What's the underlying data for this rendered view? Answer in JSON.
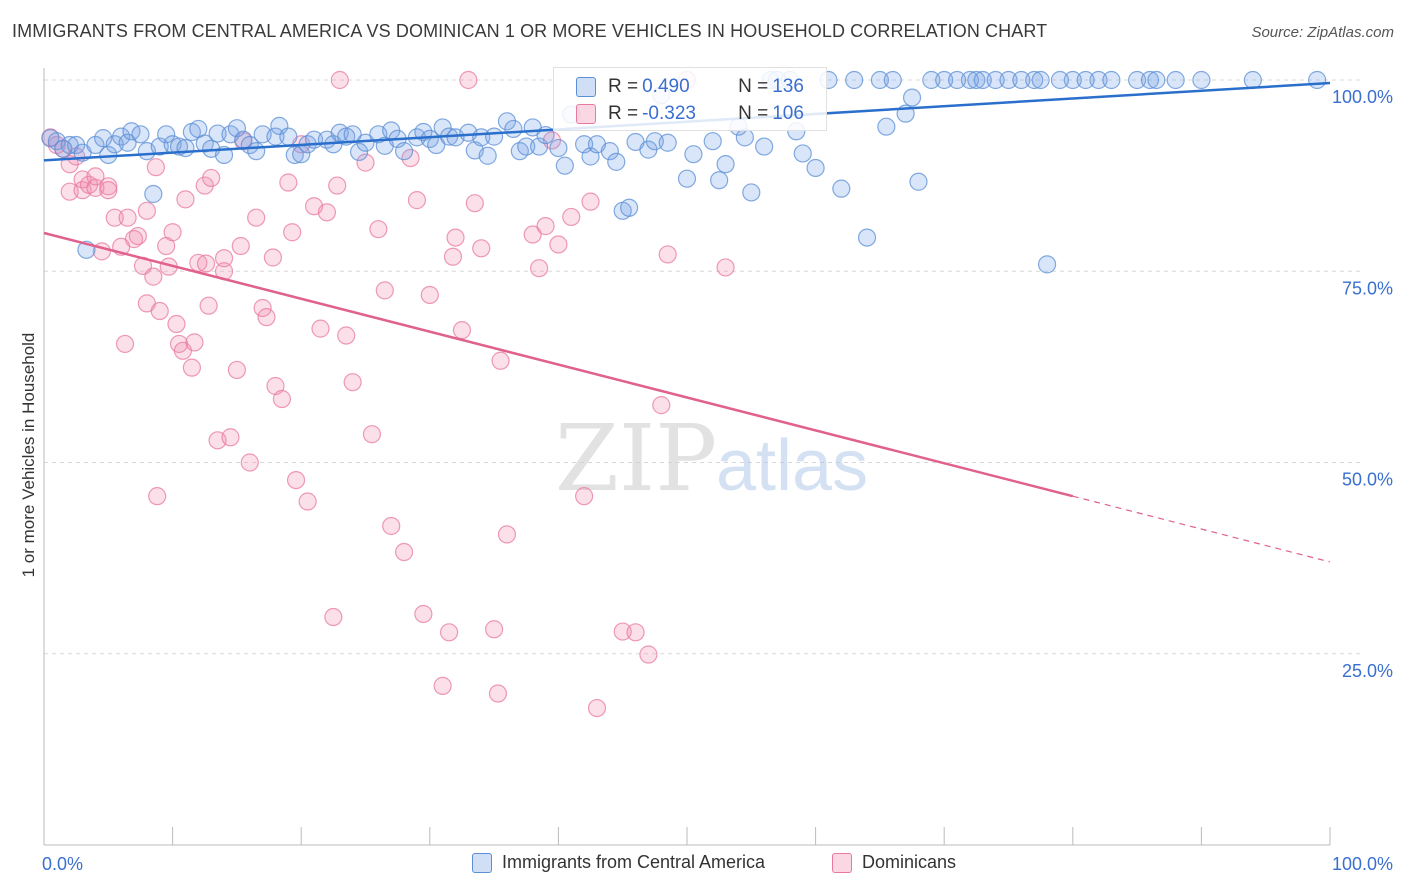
{
  "title": "IMMIGRANTS FROM CENTRAL AMERICA VS DOMINICAN 1 OR MORE VEHICLES IN HOUSEHOLD CORRELATION CHART",
  "source": "Source: ZipAtlas.com",
  "watermark": {
    "zip": "ZIP",
    "atlas": "atlas"
  },
  "stats": [
    {
      "r_label": "R =",
      "r_value": "0.490",
      "n_label": "N =",
      "n_value": "136"
    },
    {
      "r_label": "R =",
      "r_value": "-0.323",
      "n_label": "N =",
      "n_value": "106"
    }
  ],
  "legend": [
    {
      "label": "Immigrants from Central America"
    },
    {
      "label": "Dominicans"
    }
  ],
  "colors": {
    "blue": "#5b8fd6",
    "blue_fill": "rgba(120,160,230,0.28)",
    "blue_line": "#2a6fcc",
    "pink": "#e87aa0",
    "pink_fill": "rgba(240,140,175,0.28)",
    "pink_line": "#e0608e",
    "tick_label": "#3a6fd0",
    "grid": "#d8d8d8"
  },
  "chart_data": {
    "type": "scatter",
    "title": "IMMIGRANTS FROM CENTRAL AMERICA VS DOMINICAN 1 OR MORE VEHICLES IN HOUSEHOLD CORRELATION CHART",
    "xlabel": "",
    "ylabel": "1 or more Vehicles in Household",
    "xlim": [
      0,
      100
    ],
    "ylim": [
      0,
      100
    ],
    "x_tick_labels": [
      "0.0%",
      "100.0%"
    ],
    "y_ticks": [
      25,
      50,
      75,
      100
    ],
    "y_tick_labels": [
      "25.0%",
      "50.0%",
      "75.0%",
      "100.0%"
    ],
    "grid": true,
    "legend_position": "bottom",
    "series": [
      {
        "name": "Immigrants from Central America",
        "trend": {
          "x0": 0,
          "y0": 89.5,
          "x1": 100,
          "y1": 99.6
        },
        "points": [
          [
            0.5,
            92.4
          ],
          [
            1,
            92
          ],
          [
            1.5,
            91
          ],
          [
            2,
            91.5
          ],
          [
            2.5,
            91.5
          ],
          [
            3,
            90.5
          ],
          [
            3.3,
            77.8
          ],
          [
            4,
            91.5
          ],
          [
            4.6,
            92.4
          ],
          [
            5,
            90.2
          ],
          [
            5.5,
            91.6
          ],
          [
            6,
            92.6
          ],
          [
            6.5,
            91.8
          ],
          [
            6.8,
            93.3
          ],
          [
            7.5,
            92.9
          ],
          [
            8,
            90.7
          ],
          [
            8.5,
            85.1
          ],
          [
            9,
            91.3
          ],
          [
            9.5,
            92.9
          ],
          [
            10,
            91.6
          ],
          [
            10.5,
            91.3
          ],
          [
            11,
            91.1
          ],
          [
            11.5,
            93.2
          ],
          [
            12,
            93.6
          ],
          [
            12.5,
            91.7
          ],
          [
            13,
            91.0
          ],
          [
            13.5,
            93.0
          ],
          [
            14,
            90.2
          ],
          [
            14.5,
            92.9
          ],
          [
            15,
            93.7
          ],
          [
            15.5,
            92.2
          ],
          [
            16,
            91.5
          ],
          [
            16.5,
            90.7
          ],
          [
            17,
            92.9
          ],
          [
            18,
            92.6
          ],
          [
            18.3,
            94.0
          ],
          [
            19,
            92.6
          ],
          [
            19.5,
            90.2
          ],
          [
            20,
            90.3
          ],
          [
            20.5,
            91.6
          ],
          [
            21,
            92.2
          ],
          [
            22,
            92.2
          ],
          [
            22.5,
            91.6
          ],
          [
            23,
            93.1
          ],
          [
            23.5,
            92.6
          ],
          [
            24,
            92.9
          ],
          [
            24.5,
            90.6
          ],
          [
            25,
            91.8
          ],
          [
            26,
            92.9
          ],
          [
            26.5,
            91.4
          ],
          [
            27,
            93.4
          ],
          [
            27.5,
            92.3
          ],
          [
            28,
            90.7
          ],
          [
            29,
            92.5
          ],
          [
            29.5,
            93.2
          ],
          [
            30,
            92.3
          ],
          [
            30.5,
            91.5
          ],
          [
            31,
            93.8
          ],
          [
            31.5,
            92.6
          ],
          [
            32,
            92.5
          ],
          [
            33,
            93.1
          ],
          [
            33.5,
            90.8
          ],
          [
            34,
            92.5
          ],
          [
            34.5,
            90.1
          ],
          [
            35,
            92.6
          ],
          [
            36,
            94.6
          ],
          [
            36.5,
            93.6
          ],
          [
            37,
            90.7
          ],
          [
            37.5,
            91.3
          ],
          [
            38,
            93.8
          ],
          [
            38.5,
            91.3
          ],
          [
            39,
            92.8
          ],
          [
            40,
            91.1
          ],
          [
            40.5,
            88.8
          ],
          [
            41,
            95.5
          ],
          [
            42,
            91.6
          ],
          [
            42.5,
            90.0
          ],
          [
            43,
            91.6
          ],
          [
            44,
            90.7
          ],
          [
            44.5,
            89.3
          ],
          [
            45,
            82.9
          ],
          [
            45.5,
            83.3
          ],
          [
            46,
            91.9
          ],
          [
            47,
            90.9
          ],
          [
            47.5,
            92.0
          ],
          [
            48,
            98.0
          ],
          [
            48.5,
            91.8
          ],
          [
            50,
            87.1
          ],
          [
            50.5,
            90.3
          ],
          [
            52,
            92.0
          ],
          [
            52.5,
            86.9
          ],
          [
            53,
            89.0
          ],
          [
            54,
            93.9
          ],
          [
            54.5,
            92.5
          ],
          [
            55,
            85.3
          ],
          [
            56,
            91.3
          ],
          [
            56.5,
            100
          ],
          [
            57,
            100
          ],
          [
            58,
            100
          ],
          [
            58.5,
            93.3
          ],
          [
            59,
            90.4
          ],
          [
            60,
            88.5
          ],
          [
            61,
            100
          ],
          [
            62,
            85.8
          ],
          [
            63,
            100
          ],
          [
            64,
            79.4
          ],
          [
            65,
            100
          ],
          [
            65.5,
            93.9
          ],
          [
            66,
            100
          ],
          [
            67,
            95.6
          ],
          [
            67.5,
            97.7
          ],
          [
            68,
            86.7
          ],
          [
            69,
            100
          ],
          [
            70,
            100
          ],
          [
            71,
            100
          ],
          [
            72,
            100
          ],
          [
            72.5,
            100
          ],
          [
            73,
            100
          ],
          [
            74,
            100
          ],
          [
            75,
            100
          ],
          [
            76,
            100
          ],
          [
            77,
            100
          ],
          [
            77.5,
            100
          ],
          [
            78,
            75.9
          ],
          [
            80,
            100
          ],
          [
            82,
            100
          ],
          [
            83,
            100
          ],
          [
            85,
            100
          ],
          [
            86,
            100
          ],
          [
            88,
            100
          ],
          [
            90,
            100
          ],
          [
            94,
            100
          ],
          [
            99,
            100
          ],
          [
            86.5,
            100
          ],
          [
            81,
            100
          ],
          [
            79,
            100
          ]
        ]
      },
      {
        "name": "Dominicans",
        "trend": {
          "x0": 0,
          "y0": 80.0,
          "x1": 80,
          "y1": 45.6,
          "dash_to_x": 100,
          "dash_to_y": 37.0
        },
        "points": [
          [
            0.5,
            92.5
          ],
          [
            1,
            91.5
          ],
          [
            1.5,
            91
          ],
          [
            2,
            89
          ],
          [
            2,
            85.4
          ],
          [
            2.5,
            90
          ],
          [
            3,
            85.6
          ],
          [
            3,
            87
          ],
          [
            3.5,
            86.3
          ],
          [
            4,
            85.9
          ],
          [
            4,
            87.4
          ],
          [
            4.5,
            77.6
          ],
          [
            5,
            86.1
          ],
          [
            5,
            85.6
          ],
          [
            5.5,
            82
          ],
          [
            6,
            78.2
          ],
          [
            6.3,
            65.5
          ],
          [
            6.5,
            82
          ],
          [
            7,
            79.2
          ],
          [
            7.3,
            79.6
          ],
          [
            7.7,
            75.7
          ],
          [
            8,
            82.9
          ],
          [
            8,
            70.8
          ],
          [
            8.5,
            74.3
          ],
          [
            8.7,
            88.6
          ],
          [
            8.8,
            45.6
          ],
          [
            9,
            69.8
          ],
          [
            9.5,
            78.3
          ],
          [
            9.7,
            75.6
          ],
          [
            10,
            80.1
          ],
          [
            10.3,
            68.1
          ],
          [
            10.5,
            65.5
          ],
          [
            10.8,
            64.6
          ],
          [
            11,
            84.4
          ],
          [
            11.5,
            62.4
          ],
          [
            11.7,
            65.7
          ],
          [
            12,
            76.1
          ],
          [
            12.5,
            86.2
          ],
          [
            12.6,
            76
          ],
          [
            12.8,
            70.5
          ],
          [
            13,
            87.2
          ],
          [
            13.5,
            52.9
          ],
          [
            14,
            75
          ],
          [
            14,
            76.7
          ],
          [
            14.5,
            53.3
          ],
          [
            15,
            62.1
          ],
          [
            15.3,
            78.3
          ],
          [
            15.5,
            92
          ],
          [
            16,
            50.0
          ],
          [
            16.5,
            82
          ],
          [
            17,
            70.2
          ],
          [
            17.3,
            69
          ],
          [
            17.8,
            76.8
          ],
          [
            18,
            60
          ],
          [
            18.5,
            58.3
          ],
          [
            19,
            86.6
          ],
          [
            19.3,
            80.1
          ],
          [
            19.6,
            47.7
          ],
          [
            20,
            91.6
          ],
          [
            20.5,
            44.9
          ],
          [
            21,
            83.5
          ],
          [
            21.5,
            67.5
          ],
          [
            22,
            82.7
          ],
          [
            22.5,
            29.8
          ],
          [
            22.8,
            86.2
          ],
          [
            23,
            100
          ],
          [
            23.5,
            66.6
          ],
          [
            24,
            60.5
          ],
          [
            25,
            89.2
          ],
          [
            25.5,
            53.7
          ],
          [
            26,
            80.5
          ],
          [
            26.5,
            72.5
          ],
          [
            27,
            41.7
          ],
          [
            28,
            38.3
          ],
          [
            28.5,
            89.8
          ],
          [
            29,
            84.3
          ],
          [
            29.5,
            30.2
          ],
          [
            30,
            71.9
          ],
          [
            31,
            20.8
          ],
          [
            31.5,
            27.8
          ],
          [
            31.8,
            76.9
          ],
          [
            32,
            79.4
          ],
          [
            32.5,
            67.3
          ],
          [
            33,
            100
          ],
          [
            33.5,
            83.9
          ],
          [
            34,
            78.0
          ],
          [
            35,
            28.2
          ],
          [
            35.3,
            19.8
          ],
          [
            35.5,
            63.3
          ],
          [
            36,
            40.6
          ],
          [
            38,
            79.8
          ],
          [
            38.5,
            75.4
          ],
          [
            39,
            80.9
          ],
          [
            39.5,
            92.1
          ],
          [
            40,
            78.5
          ],
          [
            41,
            82.1
          ],
          [
            42,
            45.6
          ],
          [
            42.5,
            84.1
          ],
          [
            43,
            17.9
          ],
          [
            45,
            27.9
          ],
          [
            46,
            27.8
          ],
          [
            47,
            24.9
          ],
          [
            48,
            57.5
          ],
          [
            48.5,
            77.2
          ],
          [
            50,
            100
          ],
          [
            53,
            75.5
          ]
        ]
      }
    ]
  }
}
